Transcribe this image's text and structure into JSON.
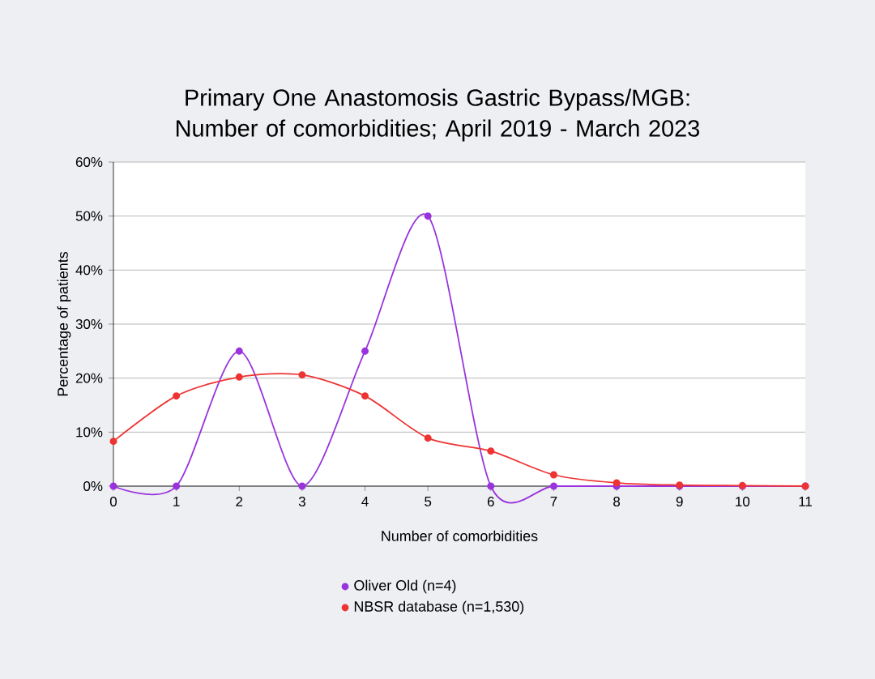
{
  "chart_data": {
    "type": "line",
    "title": "Primary One Anastomosis Gastric Bypass/MGB: Number of comorbidities; April 2019 - March 2023",
    "xlabel": "Number of comorbidities",
    "ylabel": "Percentage of patients",
    "x": [
      0,
      1,
      2,
      3,
      4,
      5,
      6,
      7,
      8,
      9,
      10,
      11
    ],
    "series": [
      {
        "name": "Oliver Old (n=4)",
        "color": "#9933dd",
        "values": [
          0,
          0,
          25,
          0,
          25,
          50,
          0,
          0,
          0,
          0,
          0,
          0
        ]
      },
      {
        "name": "NBSR database (n=1,530)",
        "color": "#ee3333",
        "values": [
          8.3,
          16.7,
          20.2,
          20.6,
          16.7,
          8.9,
          6.5,
          2.1,
          0.6,
          0.2,
          0.1,
          0
        ]
      }
    ],
    "xlim": [
      0,
      11
    ],
    "xticks": [
      0,
      1,
      2,
      3,
      4,
      5,
      6,
      7,
      8,
      9,
      10,
      11
    ],
    "ylim": [
      0,
      60
    ],
    "yticks": [
      {
        "value": 0,
        "label": "0%"
      },
      {
        "value": 10,
        "label": "10%"
      },
      {
        "value": 20,
        "label": "20%"
      },
      {
        "value": 30,
        "label": "30%"
      },
      {
        "value": 40,
        "label": "40%"
      },
      {
        "value": 50,
        "label": "50%"
      },
      {
        "value": 60,
        "label": "60%"
      }
    ],
    "grid": "y",
    "legend": "bottom",
    "marker": "circle",
    "line_style": "solid"
  }
}
